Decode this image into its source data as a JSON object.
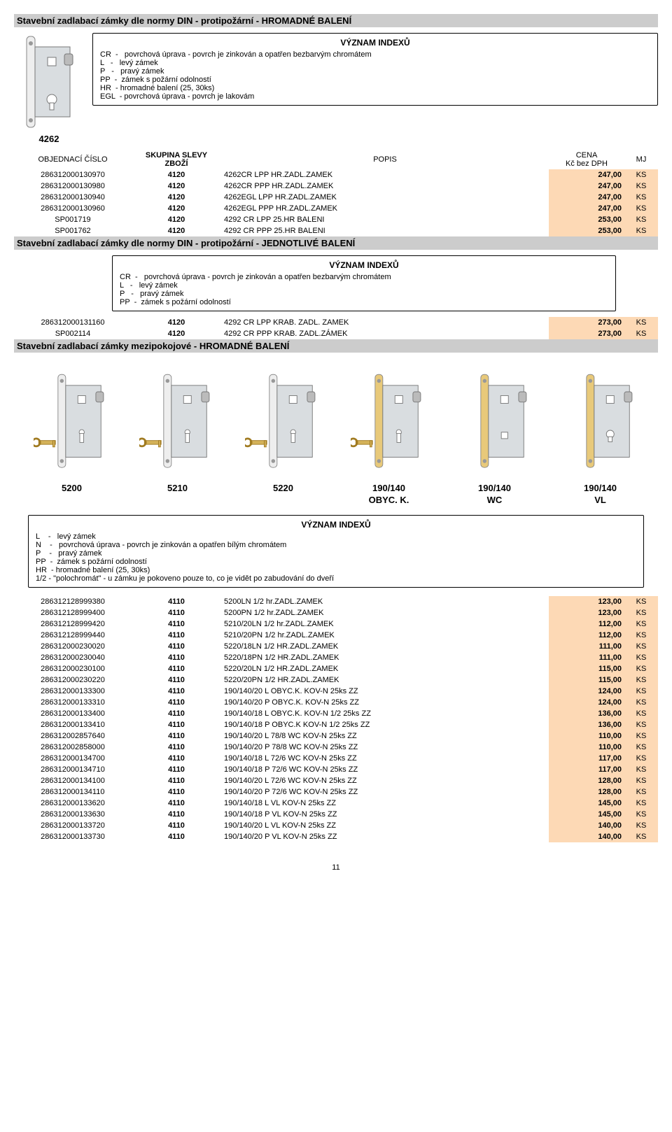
{
  "price_bg": "#fdd9b5",
  "section1_title": "Stavební zadlabací zámky dle normy DIN - protipožární - HROMADNÉ BALENÍ",
  "section2_title": "Stavební zadlabací zámky dle normy DIN - protipožární - JEDNOTLIVÉ BALENÍ",
  "section3_title": "Stavební zadlabací zámky mezipokojové - HROMADNÉ BALENÍ",
  "model_4262": "4262",
  "defs_title": "VÝZNAM INDEXŮ",
  "defs1": {
    "CR": "CR  -   povrchová úprava - povrch je zinkován a opatřen bezbarvým chromátem",
    "L": "L   -   levý zámek",
    "P": "P   -   pravý zámek",
    "PP": "PP  -  zámek s požární odolností",
    "HR": "HR  - hromadné balení (25, 30ks)",
    "EGL": "EGL  - povrchová úprava - povrch je lakovám"
  },
  "defs2": {
    "CR": "CR  -   povrchová úprava - povrch je zinkován a opatřen bezbarvým chromátem",
    "L": "L   -   levý zámek",
    "P": "P   -   pravý zámek",
    "PP": "PP  -  zámek s požární odolností"
  },
  "defs3": {
    "L": "L    -   levý zámek",
    "N": "N    -   povrchová úprava - povrch je zinkován a opatřen bílým chromátem",
    "P": "P    -   pravý zámek",
    "PP": "PP  -  zámek s požární odolností",
    "HR": "HR  - hromadné balení (25, 30ks)",
    "HALF": "1/2  - \"polochromát\" - u zámku je pokoveno pouze to, co je vidět po zabudování do dveří"
  },
  "headers": {
    "obj": "OBJEDNACÍ ČÍSLO",
    "sku": "SKUPINA SLEVY\nZBOŽÍ",
    "pop": "POPIS",
    "cena": "CENA\nKč bez DPH",
    "mj": "MJ"
  },
  "table1": [
    {
      "obj": "286312000130970",
      "sku": "4120",
      "pop": "4262CR LPP HR.ZADL.ZAMEK",
      "cena": "247,00",
      "mj": "KS"
    },
    {
      "obj": "286312000130980",
      "sku": "4120",
      "pop": "4262CR PPP HR.ZADL.ZAMEK",
      "cena": "247,00",
      "mj": "KS"
    },
    {
      "obj": "286312000130940",
      "sku": "4120",
      "pop": "4262EGL LPP HR.ZADL.ZAMEK",
      "cena": "247,00",
      "mj": "KS"
    },
    {
      "obj": "286312000130960",
      "sku": "4120",
      "pop": "4262EGL PPP HR.ZADL.ZAMEK",
      "cena": "247,00",
      "mj": "KS"
    },
    {
      "obj": "SP001719",
      "sku": "4120",
      "pop": "4292 CR LPP 25.HR BALENI",
      "cena": "253,00",
      "mj": "KS"
    },
    {
      "obj": "SP001762",
      "sku": "4120",
      "pop": "4292 CR  PPP  25.HR BALENI",
      "cena": "253,00",
      "mj": "KS"
    }
  ],
  "table2": [
    {
      "obj": "286312000131160",
      "sku": "4120",
      "pop": "4292 CR LPP KRAB. ZADL. ZAMEK",
      "cena": "273,00",
      "mj": "KS"
    },
    {
      "obj": "SP002114",
      "sku": "4120",
      "pop": "4292 CR PPP KRAB. ZADL.ZÁMEK",
      "cena": "273,00",
      "mj": "KS"
    }
  ],
  "gallery": [
    {
      "label": "5200"
    },
    {
      "label": "5210"
    },
    {
      "label": "5220"
    },
    {
      "label": "190/140\nOBYC. K."
    },
    {
      "label": "190/140\nWC"
    },
    {
      "label": "190/140\nVL"
    }
  ],
  "table3": [
    {
      "obj": "286312128999380",
      "sku": "4110",
      "pop": "5200LN 1/2 hr.ZADL.ZAMEK",
      "cena": "123,00",
      "mj": "KS"
    },
    {
      "obj": "286312128999400",
      "sku": "4110",
      "pop": "5200PN 1/2 hr.ZADL.ZAMEK",
      "cena": "123,00",
      "mj": "KS"
    },
    {
      "obj": "286312128999420",
      "sku": "4110",
      "pop": "5210/20LN 1/2 hr.ZADL.ZAMEK",
      "cena": "112,00",
      "mj": "KS"
    },
    {
      "obj": "286312128999440",
      "sku": "4110",
      "pop": "5210/20PN 1/2 hr.ZADL.ZAMEK",
      "cena": "112,00",
      "mj": "KS"
    },
    {
      "obj": "286312000230020",
      "sku": "4110",
      "pop": "5220/18LN 1/2 HR.ZADL.ZAMEK",
      "cena": "111,00",
      "mj": "KS"
    },
    {
      "obj": "286312000230040",
      "sku": "4110",
      "pop": "5220/18PN 1/2 HR.ZADL.ZAMEK",
      "cena": "111,00",
      "mj": "KS"
    },
    {
      "obj": "286312000230100",
      "sku": "4110",
      "pop": "5220/20LN 1/2 HR.ZADL.ZAMEK",
      "cena": "115,00",
      "mj": "KS"
    },
    {
      "obj": "286312000230220",
      "sku": "4110",
      "pop": "5220/20PN 1/2 HR.ZADL.ZAMEK",
      "cena": "115,00",
      "mj": "KS"
    },
    {
      "obj": "286312000133300",
      "sku": "4110",
      "pop": "190/140/20 L OBYC.K. KOV-N 25ks ZZ",
      "cena": "124,00",
      "mj": "KS"
    },
    {
      "obj": "286312000133310",
      "sku": "4110",
      "pop": "190/140/20 P OBYC.K. KOV-N 25ks ZZ",
      "cena": "124,00",
      "mj": "KS"
    },
    {
      "obj": "286312000133400",
      "sku": "4110",
      "pop": "190/140/18 L OBYC.K. KOV-N 1/2 25ks ZZ",
      "cena": "136,00",
      "mj": "KS"
    },
    {
      "obj": "286312000133410",
      "sku": "4110",
      "pop": "190/140/18 P OBYC.K KOV-N 1/2 25ks ZZ",
      "cena": "136,00",
      "mj": "KS"
    },
    {
      "obj": "286312002857640",
      "sku": "4110",
      "pop": "190/140/20 L 78/8 WC KOV-N 25ks ZZ",
      "cena": "110,00",
      "mj": "KS"
    },
    {
      "obj": "286312002858000",
      "sku": "4110",
      "pop": "190/140/20 P 78/8 WC KOV-N 25ks ZZ",
      "cena": "110,00",
      "mj": "KS"
    },
    {
      "obj": "286312000134700",
      "sku": "4110",
      "pop": "190/140/18 L 72/6 WC KOV-N 25ks ZZ",
      "cena": "117,00",
      "mj": "KS"
    },
    {
      "obj": "286312000134710",
      "sku": "4110",
      "pop": "190/140/18 P 72/6 WC KOV-N 25ks ZZ",
      "cena": "117,00",
      "mj": "KS"
    },
    {
      "obj": "286312000134100",
      "sku": "4110",
      "pop": "190/140/20 L 72/6 WC KOV-N 25ks ZZ",
      "cena": "128,00",
      "mj": "KS"
    },
    {
      "obj": "286312000134110",
      "sku": "4110",
      "pop": "190/140/20 P 72/6 WC KOV-N 25ks ZZ",
      "cena": "128,00",
      "mj": "KS"
    },
    {
      "obj": "286312000133620",
      "sku": "4110",
      "pop": "190/140/18 L VL KOV-N 25ks ZZ",
      "cena": "145,00",
      "mj": "KS"
    },
    {
      "obj": "286312000133630",
      "sku": "4110",
      "pop": "190/140/18 P VL KOV-N 25ks ZZ",
      "cena": "145,00",
      "mj": "KS"
    },
    {
      "obj": "286312000133720",
      "sku": "4110",
      "pop": "190/140/20 L VL KOV-N 25ks ZZ",
      "cena": "140,00",
      "mj": "KS"
    },
    {
      "obj": "286312000133730",
      "sku": "4110",
      "pop": "190/140/20 P VL KOV-N 25ks ZZ",
      "cena": "140,00",
      "mj": "KS"
    }
  ],
  "page_num": "11"
}
